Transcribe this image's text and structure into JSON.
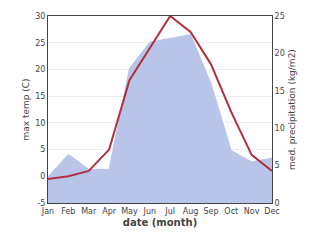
{
  "chart_data": {
    "type": "line",
    "categories": [
      "Jan",
      "Feb",
      "Mar",
      "Apr",
      "May",
      "Jun",
      "Jul",
      "Aug",
      "Sep",
      "Oct",
      "Nov",
      "Dec"
    ],
    "series": [
      {
        "type": "area",
        "axis": "y2",
        "color": "#b8c4e8",
        "values": [
          3.5,
          6.5,
          4.5,
          4.5,
          18.0,
          21.5,
          22.0,
          22.5,
          16.0,
          7.0,
          5.5,
          6.0
        ]
      },
      {
        "type": "line",
        "color": "#b03040",
        "values": [
          -0.5,
          0.0,
          1.0,
          5.0,
          18.0,
          24.0,
          30.0,
          27.0,
          21.0,
          12.0,
          4.0,
          1.0
        ]
      }
    ],
    "xlabel": "date (month)",
    "ylabel": "max temp (C)",
    "y2label": "med. precipitation (kg/m2)",
    "ylim": [
      -5,
      30
    ],
    "yticks": [
      -5,
      0,
      5,
      10,
      15,
      20,
      25,
      30
    ],
    "y2lim": [
      0,
      25
    ],
    "y2ticks": [
      0,
      5,
      10,
      15,
      20,
      25
    ],
    "grid": true
  }
}
